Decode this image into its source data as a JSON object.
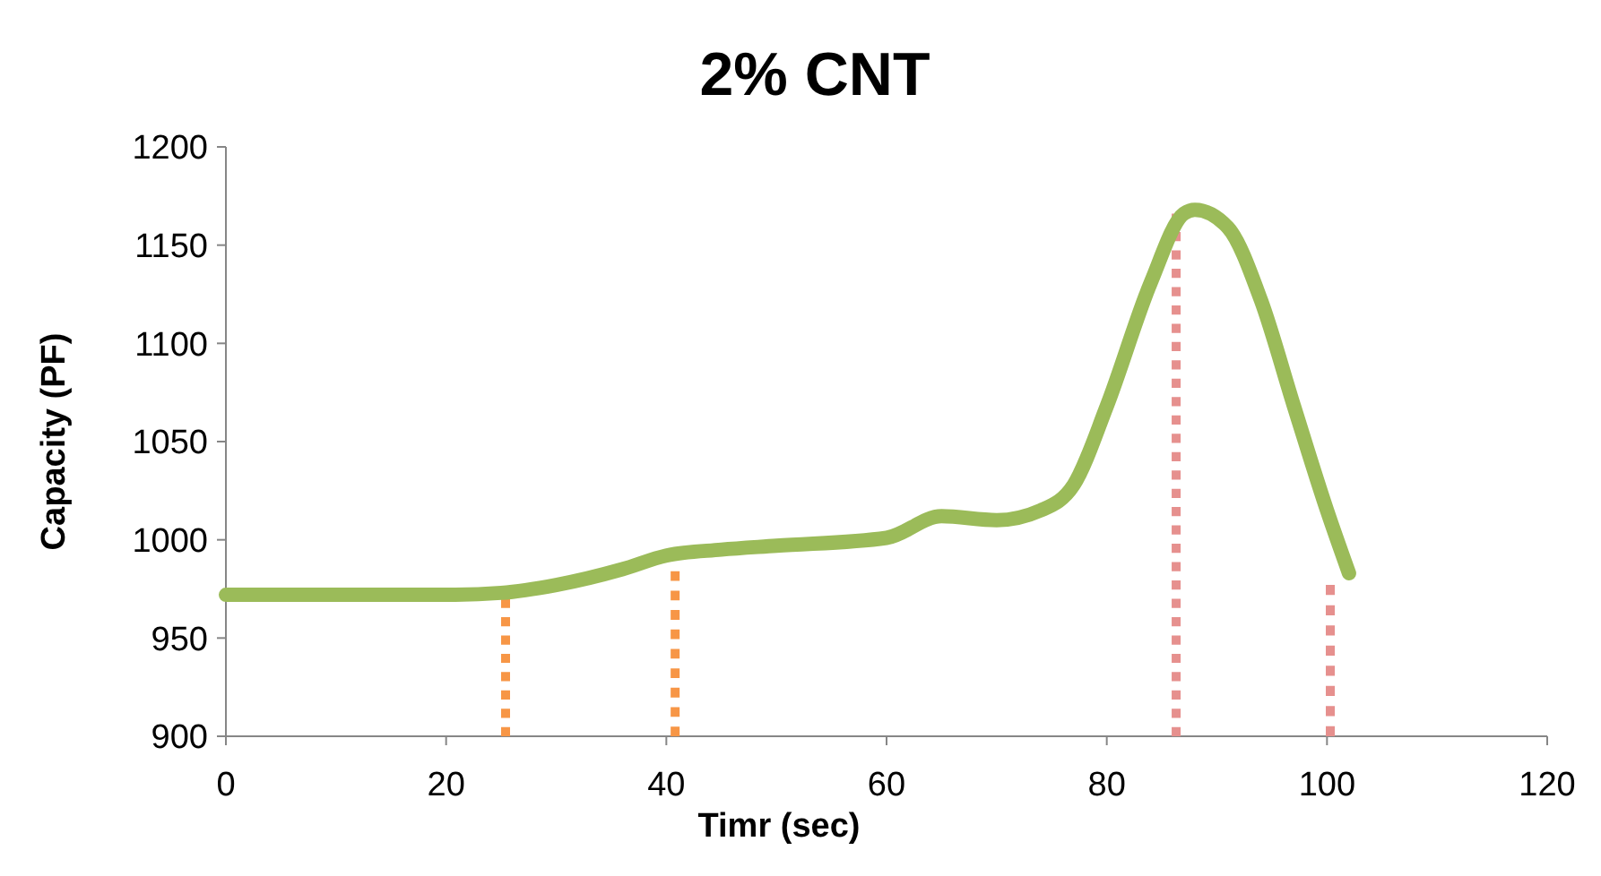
{
  "chart_data": {
    "type": "line",
    "title": "2% CNT",
    "xlabel": "Timr (sec)",
    "ylabel": "Capacity (PF)",
    "xlim": [
      0,
      120
    ],
    "xticks": [
      0,
      20,
      40,
      60,
      80,
      100,
      120
    ],
    "ylim": [
      900,
      1200
    ],
    "yticks": [
      900,
      950,
      1000,
      1050,
      1100,
      1150,
      1200
    ],
    "grid": false,
    "series": [
      {
        "color": "#9bbb59",
        "line_style": "solid",
        "x": [
          0,
          10,
          20,
          25,
          30,
          36,
          40,
          45,
          50,
          60,
          65,
          70,
          74,
          77,
          80,
          84,
          87,
          88,
          91,
          94,
          97,
          100,
          102
        ],
        "values": [
          972,
          972,
          972,
          973,
          977,
          985,
          992,
          995,
          997,
          1001,
          1012,
          1010,
          1015,
          1028,
          1068,
          1131,
          1166,
          1168,
          1159,
          1122,
          1068,
          1015,
          983
        ]
      },
      {
        "color": "#f79646",
        "line_style": "dotted",
        "x": [
          25.4,
          25.4
        ],
        "values": [
          900,
          970
        ]
      },
      {
        "color": "#f79646",
        "line_style": "dotted",
        "x": [
          40.8,
          40.8
        ],
        "values": [
          900,
          984
        ]
      },
      {
        "color": "#e6908e",
        "line_style": "dotted",
        "x": [
          86.3,
          86.3
        ],
        "values": [
          900,
          1166
        ]
      },
      {
        "color": "#e6908e",
        "line_style": "dotted",
        "x": [
          100.3,
          100.3
        ],
        "values": [
          900,
          977
        ]
      }
    ]
  }
}
